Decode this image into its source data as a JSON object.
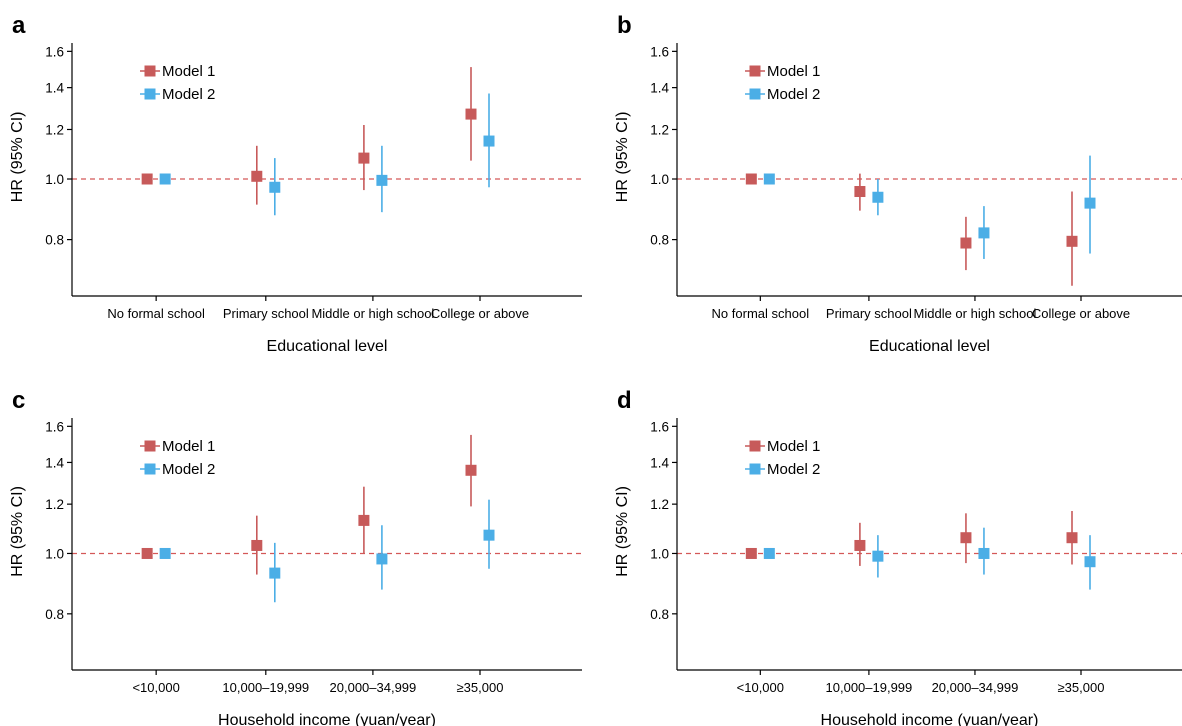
{
  "colors": {
    "model1": "#c75a5a",
    "model2": "#4baee6",
    "reference": "#d45858",
    "axis": "#000000"
  },
  "chart_data": [
    {
      "panel": "a",
      "type": "scatter",
      "scale": "log",
      "xlabel": "Educational level",
      "ylabel": "HR (95% CI)",
      "ylim": [
        0.65,
        1.65
      ],
      "yticks": [
        0.8,
        1.0,
        1.2,
        1.4,
        1.6
      ],
      "ytick_labels": [
        "0.8",
        "1.0",
        "1.2",
        "1.4",
        "1.6"
      ],
      "reference_line": 1.0,
      "legend_position": "top-left",
      "grid": false,
      "categories": [
        "No formal school",
        "Primary school",
        "Middle or high school",
        "College or above"
      ],
      "series": [
        {
          "name": "Model 1",
          "color": "#c75a5a",
          "hr": [
            1.0,
            1.01,
            1.08,
            1.27
          ],
          "lower": [
            1.0,
            0.91,
            0.96,
            1.07
          ],
          "upper": [
            1.0,
            1.13,
            1.22,
            1.51
          ]
        },
        {
          "name": "Model 2",
          "color": "#4baee6",
          "hr": [
            1.0,
            0.97,
            0.995,
            1.15
          ],
          "lower": [
            1.0,
            0.875,
            0.885,
            0.97
          ],
          "upper": [
            1.0,
            1.08,
            1.13,
            1.37
          ]
        }
      ]
    },
    {
      "panel": "b",
      "type": "scatter",
      "scale": "log",
      "xlabel": "Educational level",
      "ylabel": "HR (95% CI)",
      "ylim": [
        0.65,
        1.65
      ],
      "yticks": [
        0.8,
        1.0,
        1.2,
        1.4,
        1.6
      ],
      "ytick_labels": [
        "0.8",
        "1.0",
        "1.2",
        "1.4",
        "1.6"
      ],
      "reference_line": 1.0,
      "legend_position": "top-left",
      "grid": false,
      "categories": [
        "No formal school",
        "Primary school",
        "Middle or high school",
        "College or above"
      ],
      "series": [
        {
          "name": "Model 1",
          "color": "#c75a5a",
          "hr": [
            1.0,
            0.955,
            0.79,
            0.795
          ],
          "lower": [
            1.0,
            0.89,
            0.715,
            0.675
          ],
          "upper": [
            1.0,
            1.02,
            0.87,
            0.955
          ]
        },
        {
          "name": "Model 2",
          "color": "#4baee6",
          "hr": [
            1.0,
            0.935,
            0.82,
            0.915
          ],
          "lower": [
            1.0,
            0.875,
            0.745,
            0.76
          ],
          "upper": [
            1.0,
            1.0,
            0.905,
            1.09
          ]
        }
      ]
    },
    {
      "panel": "c",
      "type": "scatter",
      "scale": "log",
      "xlabel": "Household income (yuan/year)",
      "ylabel": "HR (95% CI)",
      "ylim": [
        0.65,
        1.65
      ],
      "yticks": [
        0.8,
        1.0,
        1.2,
        1.4,
        1.6
      ],
      "ytick_labels": [
        "0.8",
        "1.0",
        "1.2",
        "1.4",
        "1.6"
      ],
      "reference_line": 1.0,
      "legend_position": "top-left",
      "grid": false,
      "categories": [
        "<10,000",
        "10,000–19,999",
        "20,000–34,999",
        "≥35,000"
      ],
      "series": [
        {
          "name": "Model 1",
          "color": "#c75a5a",
          "hr": [
            1.0,
            1.03,
            1.13,
            1.36
          ],
          "lower": [
            1.0,
            0.925,
            1.0,
            1.19
          ],
          "upper": [
            1.0,
            1.15,
            1.28,
            1.55
          ]
        },
        {
          "name": "Model 2",
          "color": "#4baee6",
          "hr": [
            1.0,
            0.93,
            0.98,
            1.07
          ],
          "lower": [
            1.0,
            0.835,
            0.875,
            0.945
          ],
          "upper": [
            1.0,
            1.04,
            1.11,
            1.22
          ]
        }
      ]
    },
    {
      "panel": "d",
      "type": "scatter",
      "scale": "log",
      "xlabel": "Household income (yuan/year)",
      "ylabel": "HR (95% CI)",
      "ylim": [
        0.65,
        1.65
      ],
      "yticks": [
        0.8,
        1.0,
        1.2,
        1.4,
        1.6
      ],
      "ytick_labels": [
        "0.8",
        "1.0",
        "1.2",
        "1.4",
        "1.6"
      ],
      "reference_line": 1.0,
      "legend_position": "top-left",
      "grid": false,
      "categories": [
        "<10,000",
        "10,000–19,999",
        "20,000–34,999",
        "≥35,000"
      ],
      "series": [
        {
          "name": "Model 1",
          "color": "#c75a5a",
          "hr": [
            1.0,
            1.03,
            1.06,
            1.06
          ],
          "lower": [
            1.0,
            0.955,
            0.965,
            0.96
          ],
          "upper": [
            1.0,
            1.12,
            1.16,
            1.17
          ]
        },
        {
          "name": "Model 2",
          "color": "#4baee6",
          "hr": [
            1.0,
            0.99,
            1.0,
            0.97
          ],
          "lower": [
            1.0,
            0.915,
            0.925,
            0.875
          ],
          "upper": [
            1.0,
            1.07,
            1.1,
            1.07
          ]
        }
      ]
    }
  ]
}
